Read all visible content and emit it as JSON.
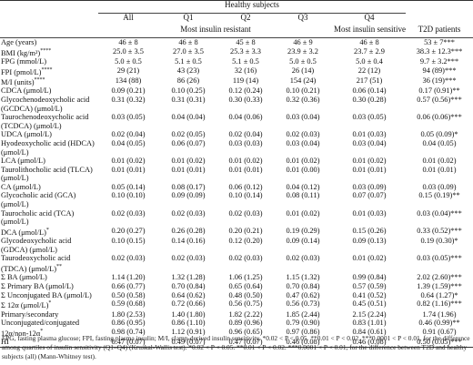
{
  "header": {
    "group": "Healthy subjects",
    "cols": [
      "All",
      "Q1",
      "Q2",
      "Q3",
      "Q4",
      "T2D patients"
    ],
    "resist": "Most insulin resistant",
    "sensitive": "Most insulin sensitive"
  },
  "rows": [
    {
      "l": "Age (years)",
      "v": [
        "46 ± 8",
        "46 ± 8",
        "45 ± 8",
        "46 ± 9",
        "46 ± 8",
        "53 ± 7***"
      ]
    },
    {
      "l": "BMI (kg/m²)",
      "sup": "****",
      "v": [
        "25.0 ± 3.5",
        "27.0 ± 3.5",
        "25.3 ± 3.3",
        "23.9 ± 3.2",
        "23.7 ± 2.9",
        "38.3 ± 12.3***"
      ]
    },
    {
      "l": "FPG (mmol/L)",
      "v": [
        "5.0 ± 0.5",
        "5.1 ± 0.5",
        "5.1 ± 0.5",
        "5.0 ± 0.5",
        "5.0 ± 0.4",
        "9.7 ± 3.2***"
      ]
    },
    {
      "l": "FPI (pmol/L)",
      "sup": "****",
      "v": [
        "29 (21)",
        "43 (23)",
        "32 (16)",
        "26 (14)",
        "22 (12)",
        "94 (89)***"
      ]
    },
    {
      "l": "M/I (units)",
      "sup": "****",
      "v": [
        "134 (88)",
        "86 (26)",
        "119 (14)",
        "154 (24)",
        "217 (51)",
        "36 (19)***"
      ]
    },
    {
      "l": "CDCA (μmol/L)",
      "v": [
        "0.09 (0.21)",
        "0.10 (0.25)",
        "0.12 (0.24)",
        "0.10 (0.21)",
        "0.06 (0.14)",
        "0.17 (0.91)**"
      ]
    },
    {
      "l": "Glycochenodeoxycholic acid (GCDCA) (μmol/L)",
      "v": [
        "0.31 (0.32)",
        "0.31 (0.31)",
        "0.30 (0.33)",
        "0.32 (0.36)",
        "0.30 (0.28)",
        "0.57 (0.56)***"
      ]
    },
    {
      "l": "Taurochenodeoxycholic acid (TCDCA) (μmol/L)",
      "v": [
        "0.03 (0.05)",
        "0.04 (0.04)",
        "0.04 (0.06)",
        "0.03 (0.04)",
        "0.03 (0.05)",
        "0.06 (0.06)***"
      ]
    },
    {
      "l": "UDCA (μmol/L)",
      "v": [
        "0.02 (0.04)",
        "0.02 (0.05)",
        "0.02 (0.04)",
        "0.02 (0.03)",
        "0.01 (0.03)",
        "0.05 (0.09)*"
      ]
    },
    {
      "l": "Hyodeoxycholic acid (HDCA) (μmol/L)",
      "v": [
        "0.04 (0.05)",
        "0.06 (0.07)",
        "0.03 (0.03)",
        "0.03 (0.04)",
        "0.03 (0.04)",
        "0.04 (0.05)"
      ]
    },
    {
      "l": "LCA (μmol/L)",
      "v": [
        "0.01 (0.02)",
        "0.01 (0.02)",
        "0.01 (0.02)",
        "0.01 (0.02)",
        "0.01 (0.02)",
        "0.01 (0.02)"
      ]
    },
    {
      "l": "Taurolithocholic acid (TLCA) (μmol/L)",
      "v": [
        "0.01 (0.01)",
        "0.01 (0.01)",
        "0.01 (0.01)",
        "0.01 (0.00)",
        "0.01 (0.01)",
        "0.01 (0.01)"
      ]
    },
    {
      "l": "CA (μmol/L)",
      "v": [
        "0.05 (0.14)",
        "0.08 (0.17)",
        "0.06 (0.12)",
        "0.04 (0.12)",
        "0.03 (0.09)",
        "0.03 (0.09)"
      ]
    },
    {
      "l": "Glycocholic acid (GCA) (μmol/L)",
      "v": [
        "0.10 (0.10)",
        "0.09 (0.09)",
        "0.10 (0.14)",
        "0.08 (0.11)",
        "0.07 (0.07)",
        "0.15 (0.19)**"
      ]
    },
    {
      "l": "Taurocholic acid (TCA) (μmol/L)",
      "v": [
        "0.02 (0.03)",
        "0.02 (0.03)",
        "0.02 (0.03)",
        "0.01 (0.02)",
        "0.01 (0.03)",
        "0.03 (0.04)***"
      ]
    },
    {
      "l": "DCA (μmol/L)",
      "sup": "*",
      "v": [
        "0.20 (0.27)",
        "0.26 (0.28)",
        "0.20 (0.21)",
        "0.19 (0.29)",
        "0.15 (0.26)",
        "0.33 (0.52)***"
      ]
    },
    {
      "l": "Glycodeoxycholic acid (GDCA) (μmol/L)",
      "v": [
        "0.10 (0.15)",
        "0.14 (0.16)",
        "0.12 (0.20)",
        "0.09 (0.14)",
        "0.09 (0.13)",
        "0.19 (0.30)*"
      ]
    },
    {
      "l": "Taurodeoxycholic acid (TDCA) (μmol/L)",
      "sup": "**",
      "v": [
        "0.02 (0.03)",
        "0.02 (0.03)",
        "0.02 (0.03)",
        "0.02 (0.03)",
        "0.01 (0.02)",
        "0.03 (0.05)***"
      ]
    },
    {
      "l": "Σ BA (μmol/L)",
      "v": [
        "1.14 (1.20)",
        "1.32 (1.28)",
        "1.06 (1.25)",
        "1.15 (1.32)",
        "0.99 (0.84)",
        "2.02 (2.60)***"
      ]
    },
    {
      "l": "Σ Primary BA (μmol/L)",
      "v": [
        "0.66 (0.77)",
        "0.70 (0.84)",
        "0.65 (0.64)",
        "0.70 (0.84)",
        "0.57 (0.59)",
        "1.39 (1.59)***"
      ]
    },
    {
      "l": "Σ Unconjugated BA (μmol/L)",
      "v": [
        "0.50 (0.58)",
        "0.64 (0.62)",
        "0.48 (0.50)",
        "0.47 (0.62)",
        "0.41 (0.52)",
        "0.64 (1.27)*"
      ]
    },
    {
      "l": "Σ 12α (μmol/L)",
      "sup": "*",
      "v": [
        "0.59 (0.68)",
        "0.72 (0.66)",
        "0.56 (0.75)",
        "0.56 (0.73)",
        "0.45 (0.51)",
        "0.82 (1.16)***"
      ]
    },
    {
      "l": "Primary/secondary",
      "v": [
        "1.80 (2.53)",
        "1.40 (1.80)",
        "1.82 (2.22)",
        "1.85 (2.44)",
        "2.15 (2.24)",
        "1.74 (1.96)"
      ]
    },
    {
      "l": "Unconjugated/conjugated",
      "v": [
        "0.86 (0.95)",
        "0.86 (1.10)",
        "0.89 (0.96)",
        "0.79 (0.90)",
        "0.83 (1.01)",
        "0.46 (0.99)**"
      ]
    },
    {
      "l": "12α/non-12α",
      "sup": "*",
      "v": [
        "0.98 (0.74)",
        "1.12 (0.91)",
        "0.96 (0.65)",
        "0.97 (0.86)",
        "0.84 (0.61)",
        "0.91 (0.67)"
      ]
    },
    {
      "l": "HI",
      "v": [
        "0.47 (0.07)",
        "0.49 (0.07)",
        "0.47 (0.07)",
        "0.46 (0.08)",
        "0.46 (0.08)",
        "0.50 (0.05)***"
      ]
    }
  ],
  "footnote": "FPG, fasting plasma glucose; FPI, fasting plasma insulin; M/I, clamp-derived insulin sensitivity. *0.02 < P < 0.05. **0.01 < P < 0.02. ***0.0001 < P < 0.01, for the difference among quartiles of insulin sensitivity (Q1–Q4) (Kruskal-Wallis test). *0.02 < P < 0.05. **0.01 < P < 0.02. ***0.0001 < P < 0.01, for the difference between T2D and healthy subjects (all) (Mann-Whitney test)."
}
